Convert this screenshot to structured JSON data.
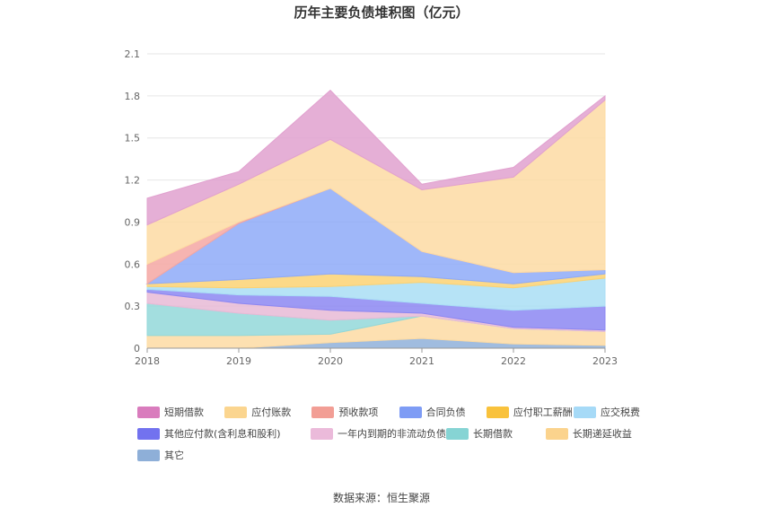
{
  "chart_data": {
    "type": "area",
    "stacked": true,
    "title": "历年主要负债堆积图（亿元）",
    "xlabel": "",
    "ylabel": "",
    "x": [
      "2018",
      "2019",
      "2020",
      "2021",
      "2022",
      "2023"
    ],
    "ylim": [
      0,
      2.1
    ],
    "yticks": [
      "0",
      "0.3",
      "0.6",
      "0.9",
      "1.2",
      "1.5",
      "1.8",
      "2.1"
    ],
    "grid": true,
    "legend_position": "bottom",
    "series": [
      {
        "name": "其它",
        "color": "#8fb0d9",
        "values": [
          0.0,
          0.0,
          0.04,
          0.07,
          0.03,
          0.02
        ]
      },
      {
        "name": "长期递延收益",
        "color": "#fddba3",
        "values": [
          0.09,
          0.09,
          0.06,
          0.16,
          0.11,
          0.1
        ]
      },
      {
        "name": "长期借款",
        "color": "#93d8d9",
        "values": [
          0.23,
          0.16,
          0.1,
          0.0,
          0.0,
          0.0
        ]
      },
      {
        "name": "一年内到期的非流动负债",
        "color": "#e8bad6",
        "values": [
          0.08,
          0.07,
          0.07,
          0.02,
          0.01,
          0.01
        ]
      },
      {
        "name": "其他应付款(含利息和股利)",
        "color": "#8c87f2",
        "values": [
          0.02,
          0.06,
          0.1,
          0.07,
          0.12,
          0.17
        ]
      },
      {
        "name": "应交税费",
        "color": "#a9def5",
        "values": [
          0.02,
          0.05,
          0.07,
          0.15,
          0.16,
          0.2
        ]
      },
      {
        "name": "应付职工薪酬",
        "color": "#fcd273",
        "values": [
          0.02,
          0.06,
          0.09,
          0.04,
          0.03,
          0.03
        ]
      },
      {
        "name": "合同负债",
        "color": "#8eaaf8",
        "values": [
          0.0,
          0.4,
          0.61,
          0.18,
          0.08,
          0.03
        ]
      },
      {
        "name": "预收款项",
        "color": "#f4a7a3",
        "values": [
          0.14,
          0.01,
          0.0,
          0.0,
          0.0,
          0.0
        ]
      },
      {
        "name": "应付账款",
        "color": "#fddba3",
        "values": [
          0.28,
          0.27,
          0.35,
          0.44,
          0.68,
          1.21
        ]
      },
      {
        "name": "短期借款",
        "color": "#e1a1cf",
        "values": [
          0.19,
          0.09,
          0.35,
          0.04,
          0.07,
          0.03
        ]
      }
    ]
  },
  "legend": [
    {
      "name": "短期借款",
      "color": "#d97cbd"
    },
    {
      "name": "应付账款",
      "color": "#fbd58f"
    },
    {
      "name": "预收款项",
      "color": "#f29e95"
    },
    {
      "name": "合同负债",
      "color": "#7e9cf5"
    },
    {
      "name": "应付职工薪酬",
      "color": "#f9c23c"
    },
    {
      "name": "应交税费",
      "color": "#a6daf7"
    },
    {
      "name": "其他应付款(含利息和股利)",
      "color": "#7272ef"
    },
    {
      "name": "一年内到期的非流动负债",
      "color": "#ebbada"
    },
    {
      "name": "长期借款",
      "color": "#86d4d4"
    },
    {
      "name": "长期递延收益",
      "color": "#fbd38d"
    },
    {
      "name": "其它",
      "color": "#8eafd8"
    }
  ],
  "source": "数据来源：恒生聚源"
}
